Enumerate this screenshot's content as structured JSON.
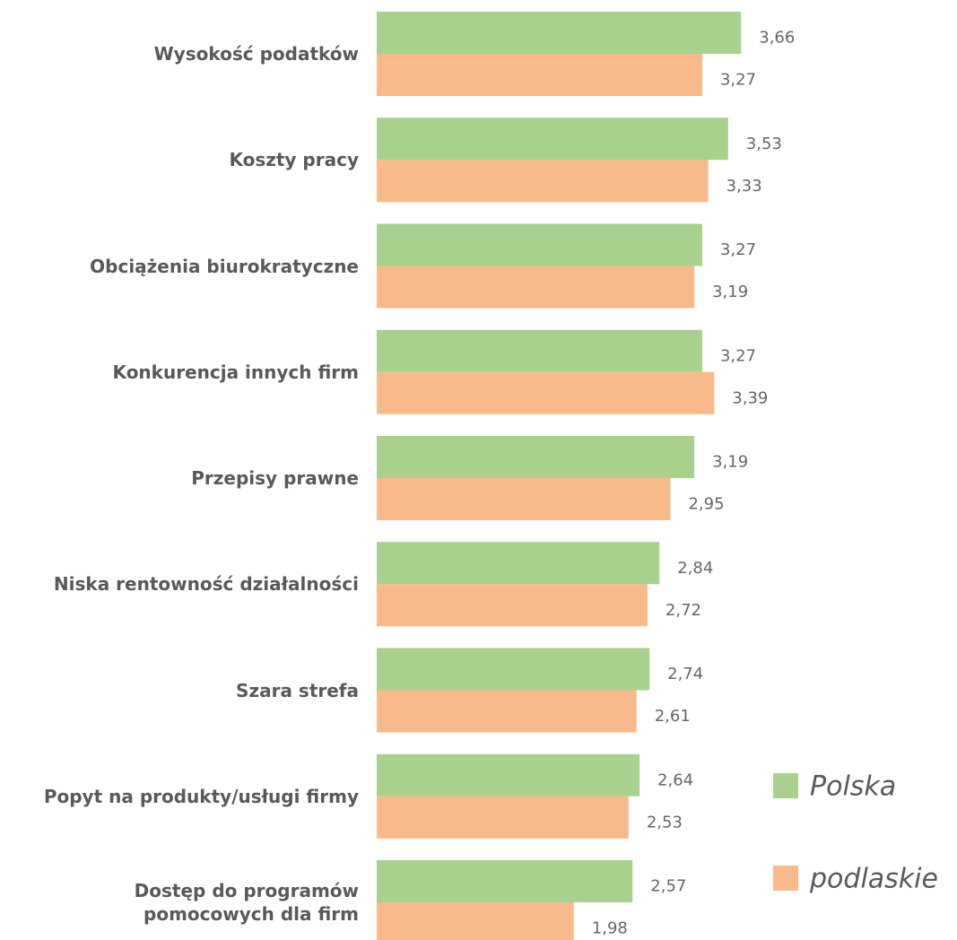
{
  "chart_data": {
    "type": "barh",
    "categories": [
      "Wysokość podatków",
      "Koszty pracy",
      "Obciążenia biurokratyczne",
      "Konkurencja innych firm",
      "Przepisy prawne",
      "Niska rentowność działalności",
      "Szara strefa",
      "Popyt na produkty/usługi firmy",
      "Dostęp do programów\npomocowych dla firm"
    ],
    "series": [
      {
        "name": "Polska",
        "color": "#a9d18e",
        "values": [
          3.66,
          3.53,
          3.27,
          3.27,
          3.19,
          2.84,
          2.74,
          2.64,
          2.57
        ],
        "value_labels": [
          "3,66",
          "3,53",
          "3,27",
          "3,27",
          "3,19",
          "2,84",
          "2,74",
          "2,64",
          "2,57"
        ]
      },
      {
        "name": "podlaskie",
        "color": "#f8b98b",
        "values": [
          3.27,
          3.33,
          3.19,
          3.39,
          2.95,
          2.72,
          2.61,
          2.53,
          1.98
        ],
        "value_labels": [
          "3,27",
          "3,33",
          "3,19",
          "3,39",
          "2,95",
          "2,72",
          "2,61",
          "2,53",
          "1,98"
        ]
      }
    ],
    "xlim": [
      0,
      4
    ],
    "legend": "lower right"
  }
}
